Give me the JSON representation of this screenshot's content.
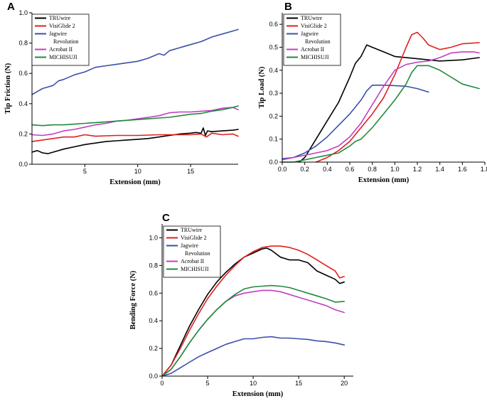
{
  "colors": {
    "TRUwire": "#000000",
    "VisiGlide 2": "#e0201e",
    "Jagwire": "#3a50a8",
    "Acrobat II": "#c23fc0",
    "MICHISUJI": "#1f8a3c"
  },
  "chart_data": [
    {
      "id": "A",
      "panel_label": "A",
      "type": "line",
      "xlabel": "Extension (mm)",
      "ylabel": "Tip Friction (N)",
      "xlim": [
        0,
        19.5
      ],
      "ylim": [
        0,
        1.0
      ],
      "xticks": [
        5,
        10,
        15
      ],
      "xtick_labels": [
        "5",
        "10",
        "15"
      ],
      "yticks": [
        0.0,
        0.2,
        0.4,
        0.6,
        0.8,
        1.0
      ],
      "ytick_labels": [
        "0.0",
        "0.2",
        "0.4",
        "0.6",
        "0.8",
        "1.0"
      ],
      "legend_position": "top-left",
      "legend": [
        {
          "label": "TRUwire",
          "series": "TRUwire"
        },
        {
          "label": "VisiGlide 2",
          "series": "VisiGlide 2"
        },
        {
          "label": "Jagwire",
          "series": "Jagwire"
        },
        {
          "label": "Revolution",
          "series": null
        },
        {
          "label": "Acrobat II",
          "series": "Acrobat II"
        },
        {
          "label": "MICHISUJI",
          "series": "MICHISUJI"
        }
      ],
      "series": [
        {
          "name": "TRUwire",
          "x": [
            0,
            0.5,
            1,
            1.5,
            2,
            3,
            4,
            5,
            6,
            7,
            8,
            9,
            10,
            11,
            12,
            13,
            14,
            15,
            15.5,
            16,
            16.2,
            16.4,
            16.6,
            17,
            18,
            19,
            19.5
          ],
          "y": [
            0.08,
            0.09,
            0.075,
            0.07,
            0.08,
            0.1,
            0.115,
            0.13,
            0.14,
            0.15,
            0.155,
            0.16,
            0.165,
            0.17,
            0.18,
            0.19,
            0.2,
            0.205,
            0.21,
            0.205,
            0.24,
            0.19,
            0.22,
            0.215,
            0.22,
            0.225,
            0.23
          ]
        },
        {
          "name": "VisiGlide 2",
          "x": [
            0,
            1,
            2,
            3,
            4,
            5,
            6,
            8,
            10,
            12,
            14,
            15,
            16,
            16.5,
            17,
            18,
            19,
            19.5
          ],
          "y": [
            0.15,
            0.16,
            0.17,
            0.18,
            0.18,
            0.195,
            0.185,
            0.19,
            0.19,
            0.195,
            0.195,
            0.195,
            0.2,
            0.18,
            0.205,
            0.195,
            0.2,
            0.185
          ]
        },
        {
          "name": "Jagwire",
          "x": [
            0,
            0.5,
            1,
            1.5,
            2,
            2.5,
            3,
            4,
            5,
            6,
            7,
            8,
            9,
            10,
            11,
            12,
            12.5,
            13,
            14,
            15,
            16,
            17,
            18,
            19,
            19.5
          ],
          "y": [
            0.46,
            0.48,
            0.5,
            0.51,
            0.52,
            0.55,
            0.56,
            0.59,
            0.61,
            0.64,
            0.65,
            0.66,
            0.67,
            0.68,
            0.7,
            0.73,
            0.72,
            0.75,
            0.77,
            0.79,
            0.81,
            0.84,
            0.86,
            0.88,
            0.89
          ]
        },
        {
          "name": "Acrobat II",
          "x": [
            0,
            1,
            2,
            3,
            4,
            5,
            6,
            7,
            8,
            9,
            10,
            11,
            12,
            13,
            14,
            15,
            16,
            17,
            18,
            19,
            19.5
          ],
          "y": [
            0.195,
            0.19,
            0.2,
            0.22,
            0.23,
            0.245,
            0.26,
            0.27,
            0.285,
            0.29,
            0.3,
            0.31,
            0.32,
            0.34,
            0.345,
            0.345,
            0.35,
            0.355,
            0.37,
            0.375,
            0.36
          ]
        },
        {
          "name": "MICHISUJI",
          "x": [
            0,
            1,
            2,
            3,
            4,
            5,
            6,
            7,
            8,
            9,
            10,
            11,
            12,
            13,
            14,
            15,
            16,
            17,
            18,
            19,
            19.5
          ],
          "y": [
            0.26,
            0.255,
            0.26,
            0.26,
            0.265,
            0.27,
            0.275,
            0.28,
            0.285,
            0.29,
            0.295,
            0.3,
            0.305,
            0.31,
            0.32,
            0.33,
            0.335,
            0.35,
            0.36,
            0.375,
            0.385
          ]
        }
      ]
    },
    {
      "id": "B",
      "panel_label": "B",
      "type": "line",
      "xlabel": "Extension (mm)",
      "ylabel": "Tip Load (N)",
      "xlim": [
        0,
        1.8
      ],
      "ylim": [
        0,
        0.65
      ],
      "xticks": [
        0.0,
        0.2,
        0.4,
        0.6,
        0.8,
        1.0,
        1.2,
        1.4,
        1.6,
        1.8
      ],
      "xtick_labels": [
        "0.0",
        "0.2",
        "0.4",
        "0.6",
        "0.8",
        "1.0",
        "1.2",
        "1.4",
        "1.6",
        "1.8"
      ],
      "yticks": [
        0.0,
        0.1,
        0.2,
        0.3,
        0.4,
        0.5,
        0.6
      ],
      "ytick_labels": [
        "0.0",
        "0.1",
        "0.2",
        "0.3",
        "0.4",
        "0.5",
        "0.6"
      ],
      "legend_position": "top-left",
      "legend": [
        {
          "label": "TRUwire",
          "series": "TRUwire"
        },
        {
          "label": "VisiGlide 2",
          "series": "VisiGlide 2"
        },
        {
          "label": "Jagwire",
          "series": "Jagwire"
        },
        {
          "label": "Revolution",
          "series": null
        },
        {
          "label": "Acrobat II",
          "series": "Acrobat II"
        },
        {
          "label": "MICHISUJI",
          "series": "MICHISUJI"
        }
      ],
      "series": [
        {
          "name": "TRUwire",
          "x": [
            0.15,
            0.2,
            0.3,
            0.4,
            0.5,
            0.6,
            0.65,
            0.7,
            0.75,
            0.8,
            0.9,
            1.0,
            1.2,
            1.4,
            1.6,
            1.75
          ],
          "y": [
            0.0,
            0.02,
            0.1,
            0.18,
            0.26,
            0.37,
            0.43,
            0.46,
            0.51,
            0.5,
            0.48,
            0.46,
            0.45,
            0.44,
            0.445,
            0.455
          ]
        },
        {
          "name": "VisiGlide 2",
          "x": [
            0.3,
            0.4,
            0.5,
            0.6,
            0.7,
            0.8,
            0.9,
            1.0,
            1.1,
            1.15,
            1.2,
            1.25,
            1.3,
            1.4,
            1.5,
            1.6,
            1.75
          ],
          "y": [
            0.0,
            0.02,
            0.05,
            0.09,
            0.15,
            0.21,
            0.28,
            0.38,
            0.5,
            0.555,
            0.565,
            0.54,
            0.51,
            0.49,
            0.5,
            0.515,
            0.52
          ]
        },
        {
          "name": "Jagwire",
          "x": [
            0.0,
            0.1,
            0.2,
            0.3,
            0.4,
            0.5,
            0.6,
            0.7,
            0.75,
            0.8,
            0.9,
            1.0,
            1.1,
            1.2,
            1.3
          ],
          "y": [
            0.015,
            0.02,
            0.04,
            0.07,
            0.11,
            0.16,
            0.21,
            0.27,
            0.31,
            0.335,
            0.335,
            0.333,
            0.33,
            0.32,
            0.305
          ]
        },
        {
          "name": "Acrobat II",
          "x": [
            0.0,
            0.1,
            0.2,
            0.3,
            0.4,
            0.5,
            0.6,
            0.7,
            0.8,
            0.9,
            1.0,
            1.1,
            1.2,
            1.3,
            1.4,
            1.5,
            1.6,
            1.7,
            1.75
          ],
          "y": [
            0.01,
            0.02,
            0.03,
            0.04,
            0.05,
            0.07,
            0.11,
            0.17,
            0.25,
            0.33,
            0.4,
            0.425,
            0.435,
            0.44,
            0.455,
            0.475,
            0.48,
            0.48,
            0.475
          ]
        },
        {
          "name": "MICHISUJI",
          "x": [
            0.0,
            0.1,
            0.2,
            0.3,
            0.4,
            0.5,
            0.6,
            0.65,
            0.7,
            0.8,
            0.9,
            1.0,
            1.1,
            1.15,
            1.2,
            1.3,
            1.4,
            1.5,
            1.6,
            1.75
          ],
          "y": [
            0.0,
            0.0,
            0.01,
            0.02,
            0.03,
            0.04,
            0.07,
            0.09,
            0.1,
            0.15,
            0.21,
            0.27,
            0.34,
            0.39,
            0.42,
            0.42,
            0.4,
            0.37,
            0.34,
            0.32
          ]
        }
      ]
    },
    {
      "id": "C",
      "panel_label": "C",
      "type": "line",
      "xlabel": "Extension (mm)",
      "ylabel": "Bending Force (N)",
      "xlim": [
        0,
        21
      ],
      "ylim": [
        0,
        1.1
      ],
      "xticks": [
        0,
        5,
        10,
        15,
        20
      ],
      "xtick_labels": [
        "0",
        "5",
        "10",
        "15",
        "20"
      ],
      "yticks": [
        0.0,
        0.2,
        0.4,
        0.6,
        0.8,
        1.0
      ],
      "ytick_labels": [
        "0.0",
        "0.2",
        "0.4",
        "0.6",
        "0.8",
        "1.0"
      ],
      "legend_position": "top-left",
      "legend": [
        {
          "label": "TRUwire",
          "series": "TRUwire"
        },
        {
          "label": "VisiGlide 2",
          "series": "VisiGlide 2"
        },
        {
          "label": "Jagwire",
          "series": "Jagwire"
        },
        {
          "label": "Revolution",
          "series": null
        },
        {
          "label": "Acrobat II",
          "series": "Acrobat II"
        },
        {
          "label": "MICHISUJI",
          "series": "MICHISUJI"
        }
      ],
      "series": [
        {
          "name": "TRUwire",
          "x": [
            0,
            1,
            2,
            3,
            4,
            5,
            6,
            7,
            8,
            9,
            10,
            11,
            11.5,
            12,
            13,
            14,
            15,
            16,
            17,
            18,
            19,
            19.5,
            20
          ],
          "y": [
            0,
            0.08,
            0.22,
            0.36,
            0.48,
            0.59,
            0.68,
            0.75,
            0.81,
            0.86,
            0.89,
            0.92,
            0.925,
            0.91,
            0.86,
            0.84,
            0.84,
            0.82,
            0.76,
            0.73,
            0.7,
            0.67,
            0.68
          ]
        },
        {
          "name": "VisiGlide 2",
          "x": [
            0,
            1,
            2,
            3,
            4,
            5,
            6,
            7,
            8,
            9,
            10,
            11,
            12,
            13,
            14,
            15,
            16,
            17,
            18,
            19,
            19.5,
            20
          ],
          "y": [
            0,
            0.08,
            0.2,
            0.33,
            0.45,
            0.56,
            0.65,
            0.73,
            0.8,
            0.86,
            0.9,
            0.93,
            0.94,
            0.94,
            0.93,
            0.91,
            0.88,
            0.84,
            0.8,
            0.76,
            0.71,
            0.72
          ]
        },
        {
          "name": "Jagwire",
          "x": [
            0,
            1,
            2,
            3,
            4,
            5,
            6,
            7,
            8,
            9,
            10,
            11,
            12,
            13,
            14,
            15,
            16,
            17,
            18,
            19,
            20
          ],
          "y": [
            0,
            0.02,
            0.06,
            0.1,
            0.14,
            0.17,
            0.2,
            0.23,
            0.25,
            0.27,
            0.27,
            0.28,
            0.285,
            0.275,
            0.275,
            0.27,
            0.265,
            0.255,
            0.25,
            0.24,
            0.225
          ]
        },
        {
          "name": "Acrobat II",
          "x": [
            0,
            1,
            2,
            3,
            4,
            5,
            6,
            7,
            8,
            9,
            10,
            11,
            12,
            13,
            14,
            15,
            16,
            17,
            18,
            19,
            20
          ],
          "y": [
            0,
            0.05,
            0.14,
            0.24,
            0.33,
            0.41,
            0.48,
            0.54,
            0.58,
            0.6,
            0.61,
            0.62,
            0.62,
            0.61,
            0.59,
            0.57,
            0.55,
            0.53,
            0.51,
            0.48,
            0.46
          ]
        },
        {
          "name": "MICHISUJI",
          "x": [
            0,
            1,
            2,
            3,
            4,
            5,
            6,
            7,
            8,
            9,
            10,
            11,
            12,
            13,
            14,
            15,
            16,
            17,
            18,
            19,
            20
          ],
          "y": [
            0,
            0.05,
            0.14,
            0.24,
            0.33,
            0.41,
            0.48,
            0.54,
            0.59,
            0.63,
            0.645,
            0.65,
            0.655,
            0.65,
            0.64,
            0.62,
            0.6,
            0.58,
            0.56,
            0.535,
            0.54
          ]
        }
      ]
    }
  ]
}
